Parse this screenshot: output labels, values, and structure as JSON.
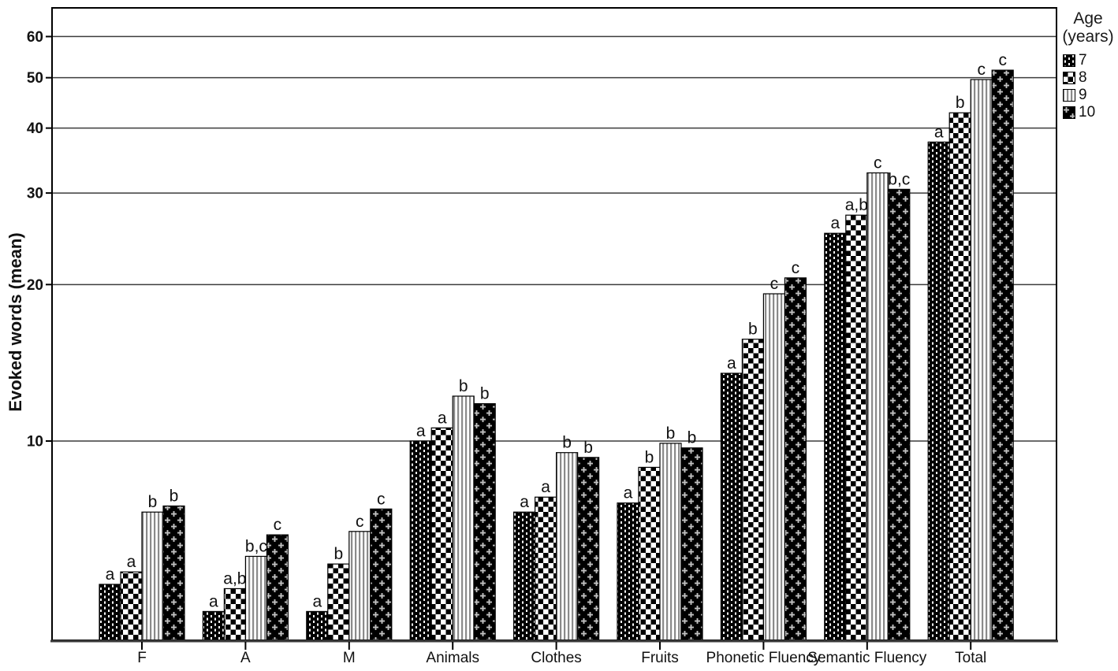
{
  "chart_data": {
    "type": "bar",
    "title": "",
    "xlabel": "",
    "ylabel": "Evoked words (mean)",
    "yscale": "log",
    "yticks": [
      10,
      20,
      30,
      40,
      50,
      60
    ],
    "ylim": [
      4.1,
      68
    ],
    "grid": true,
    "legend_title": "Age (years)",
    "legend_position": "top-right",
    "categories": [
      "F",
      "A",
      "M",
      "Animals",
      "Clothes",
      "Fruits",
      "Phonetic Fluency",
      "Semantic Fluency",
      "Total"
    ],
    "series": [
      {
        "name": "7",
        "pattern": "black-dotted-columns",
        "values": [
          5.3,
          4.7,
          4.7,
          10.0,
          7.3,
          7.6,
          13.5,
          25.1,
          37.6
        ]
      },
      {
        "name": "8",
        "pattern": "checkerboard",
        "values": [
          5.6,
          5.2,
          5.8,
          10.6,
          7.8,
          8.9,
          15.7,
          27.2,
          42.8
        ]
      },
      {
        "name": "9",
        "pattern": "gray-vertical-stripes",
        "values": [
          7.3,
          6.0,
          6.7,
          12.2,
          9.5,
          9.9,
          19.2,
          32.8,
          49.6
        ]
      },
      {
        "name": "10",
        "pattern": "black-crosses",
        "values": [
          7.5,
          6.6,
          7.4,
          11.8,
          9.3,
          9.7,
          20.6,
          30.5,
          51.7
        ]
      }
    ],
    "significance_letters": [
      [
        "a",
        "a",
        "b",
        "b"
      ],
      [
        "a",
        "a,b",
        "b,c",
        "c"
      ],
      [
        "a",
        "b",
        "c",
        "c"
      ],
      [
        "a",
        "a",
        "b",
        "b"
      ],
      [
        "a",
        "a",
        "b",
        "b"
      ],
      [
        "a",
        "b",
        "b",
        "b"
      ],
      [
        "a",
        "b",
        "c",
        "c"
      ],
      [
        "a",
        "a,b",
        "c",
        "b,c"
      ],
      [
        "a",
        "b",
        "c",
        "c"
      ]
    ],
    "colors": {
      "bar_fill_dark": "#000000",
      "bar_outline": "#000000",
      "pattern_light": "#fafafa",
      "stripe_gray": "#8a8a8a",
      "cross_gray": "#c0c0c0",
      "gridline": "#3c3c3c",
      "frame": "#000000",
      "text": "#111111"
    }
  }
}
